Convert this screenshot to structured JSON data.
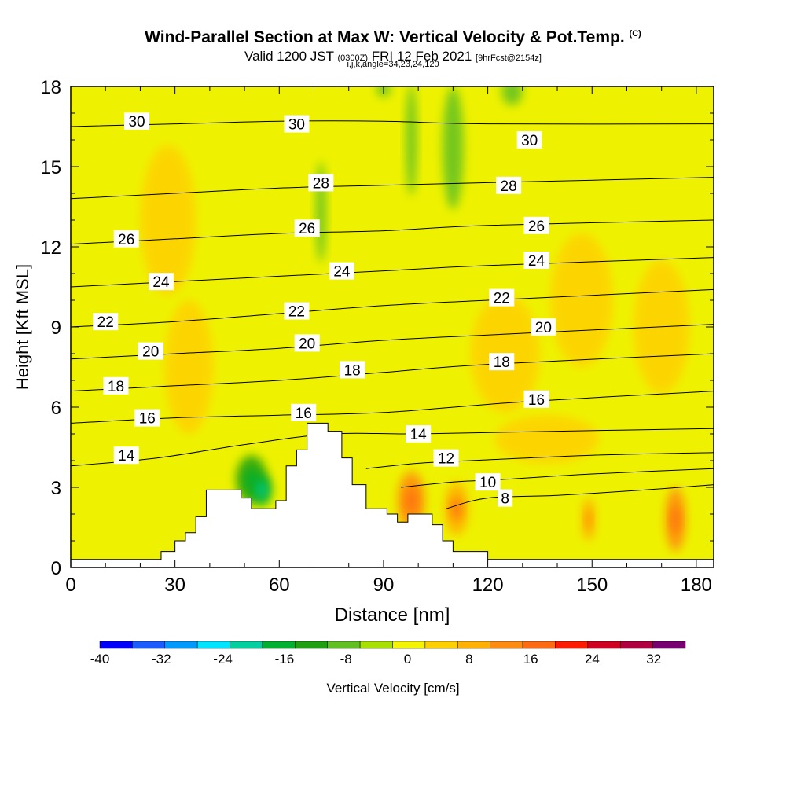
{
  "header": {
    "title": "Wind-Parallel Section at Max W: Vertical Velocity & Pot.Temp.",
    "copyright": "(C)",
    "valid_prefix": "Valid 1200 JST",
    "valid_utc": "(0300Z)",
    "valid_date": "FRI 12 Feb 2021",
    "forecast": "[9hrFcst@2154z]",
    "grid_info": "i,j,k,angle=34,23,24,120"
  },
  "colorbar": {
    "label": "Vertical Velocity [cm/s]",
    "ticks": [
      "-40",
      "-32",
      "-24",
      "-16",
      "-8",
      "0",
      "8",
      "16",
      "24",
      "32"
    ],
    "colors": [
      "#0000ff",
      "#1a5cff",
      "#0099ff",
      "#00e5ff",
      "#00d0a0",
      "#00b030",
      "#1ea010",
      "#60c020",
      "#a8e000",
      "#f5f500",
      "#ffd000",
      "#ffb000",
      "#ff8c10",
      "#ff6a10",
      "#ff1a00",
      "#d00020",
      "#b00040",
      "#780070"
    ]
  },
  "chart_data": {
    "type": "heatmap",
    "xlabel": "Distance [nm]",
    "ylabel": "Height [Kft MSL]",
    "xlim": [
      0,
      185
    ],
    "ylim": [
      0,
      18
    ],
    "x_ticks": [
      0,
      30,
      60,
      90,
      120,
      150,
      180
    ],
    "y_ticks": [
      0,
      3,
      6,
      9,
      12,
      15,
      18
    ],
    "terrain_profile": [
      [
        0,
        0.3
      ],
      [
        26,
        0.3
      ],
      [
        26,
        0.6
      ],
      [
        30,
        0.6
      ],
      [
        30,
        1.0
      ],
      [
        33,
        1.0
      ],
      [
        33,
        1.3
      ],
      [
        36,
        1.3
      ],
      [
        36,
        1.9
      ],
      [
        39,
        1.9
      ],
      [
        39,
        2.9
      ],
      [
        49,
        2.9
      ],
      [
        49,
        2.6
      ],
      [
        52,
        2.6
      ],
      [
        52,
        2.2
      ],
      [
        59,
        2.2
      ],
      [
        59,
        2.5
      ],
      [
        62,
        2.5
      ],
      [
        62,
        3.8
      ],
      [
        65,
        3.8
      ],
      [
        65,
        4.4
      ],
      [
        68,
        4.4
      ],
      [
        68,
        5.4
      ],
      [
        74,
        5.4
      ],
      [
        74,
        5.1
      ],
      [
        78,
        5.1
      ],
      [
        78,
        4.1
      ],
      [
        81,
        4.1
      ],
      [
        81,
        3.1
      ],
      [
        85,
        3.1
      ],
      [
        85,
        2.2
      ],
      [
        91,
        2.2
      ],
      [
        91,
        2.0
      ],
      [
        94,
        2.0
      ],
      [
        94,
        1.7
      ],
      [
        97,
        1.7
      ],
      [
        97,
        2.0
      ],
      [
        104,
        2.0
      ],
      [
        104,
        1.6
      ],
      [
        107,
        1.6
      ],
      [
        107,
        1.0
      ],
      [
        110,
        1.0
      ],
      [
        110,
        0.6
      ],
      [
        120,
        0.6
      ],
      [
        120,
        0.3
      ],
      [
        185,
        0.3
      ]
    ],
    "theta_contours": [
      {
        "label": "8",
        "points": [
          [
            108,
            2.2
          ],
          [
            120,
            2.6
          ],
          [
            140,
            2.7
          ],
          [
            165,
            2.9
          ],
          [
            185,
            3.1
          ]
        ],
        "label_at": [
          125,
          2.6
        ]
      },
      {
        "label": "10",
        "points": [
          [
            95,
            3.0
          ],
          [
            110,
            3.2
          ],
          [
            125,
            3.3
          ],
          [
            150,
            3.5
          ],
          [
            185,
            3.7
          ]
        ],
        "label_at": [
          120,
          3.2
        ]
      },
      {
        "label": "12",
        "points": [
          [
            85,
            3.7
          ],
          [
            100,
            3.9
          ],
          [
            115,
            4.0
          ],
          [
            150,
            4.2
          ],
          [
            185,
            4.3
          ]
        ],
        "label_at": [
          108,
          4.1
        ]
      },
      {
        "label": "14",
        "points": [
          [
            0,
            3.8
          ],
          [
            25,
            4.1
          ],
          [
            50,
            4.6
          ],
          [
            75,
            5.0
          ],
          [
            100,
            5.0
          ],
          [
            140,
            5.1
          ],
          [
            185,
            5.2
          ]
        ],
        "label_at": [
          100,
          5.0
        ]
      },
      {
        "label": "14",
        "points": [],
        "label_at": [
          16,
          4.2
        ]
      },
      {
        "label": "16",
        "points": [
          [
            0,
            5.4
          ],
          [
            30,
            5.6
          ],
          [
            60,
            5.7
          ],
          [
            90,
            5.8
          ],
          [
            130,
            6.2
          ],
          [
            185,
            6.6
          ]
        ],
        "label_at": [
          67,
          5.8
        ]
      },
      {
        "label": "16",
        "points": [],
        "label_at": [
          22,
          5.6
        ]
      },
      {
        "label": "16",
        "points": [],
        "label_at": [
          134,
          6.3
        ]
      },
      {
        "label": "18",
        "points": [
          [
            0,
            6.6
          ],
          [
            30,
            6.8
          ],
          [
            60,
            7.0
          ],
          [
            90,
            7.3
          ],
          [
            120,
            7.6
          ],
          [
            185,
            8.0
          ]
        ],
        "label_at": [
          13,
          6.8
        ]
      },
      {
        "label": "18",
        "points": [],
        "label_at": [
          81,
          7.4
        ]
      },
      {
        "label": "18",
        "points": [],
        "label_at": [
          124,
          7.7
        ]
      },
      {
        "label": "20",
        "points": [
          [
            0,
            7.8
          ],
          [
            30,
            8.0
          ],
          [
            60,
            8.2
          ],
          [
            90,
            8.5
          ],
          [
            120,
            8.7
          ],
          [
            185,
            9.1
          ]
        ],
        "label_at": [
          23,
          8.1
        ]
      },
      {
        "label": "20",
        "points": [],
        "label_at": [
          68,
          8.4
        ]
      },
      {
        "label": "20",
        "points": [],
        "label_at": [
          136,
          9.0
        ]
      },
      {
        "label": "22",
        "points": [
          [
            0,
            9.0
          ],
          [
            30,
            9.2
          ],
          [
            60,
            9.5
          ],
          [
            90,
            9.8
          ],
          [
            120,
            10.0
          ],
          [
            185,
            10.4
          ]
        ],
        "label_at": [
          10,
          9.2
        ]
      },
      {
        "label": "22",
        "points": [],
        "label_at": [
          65,
          9.6
        ]
      },
      {
        "label": "22",
        "points": [],
        "label_at": [
          124,
          10.1
        ]
      },
      {
        "label": "24",
        "points": [
          [
            0,
            10.5
          ],
          [
            30,
            10.7
          ],
          [
            60,
            10.9
          ],
          [
            90,
            11.1
          ],
          [
            120,
            11.3
          ],
          [
            185,
            11.6
          ]
        ],
        "label_at": [
          26,
          10.7
        ]
      },
      {
        "label": "24",
        "points": [],
        "label_at": [
          78,
          11.1
        ]
      },
      {
        "label": "24",
        "points": [],
        "label_at": [
          134,
          11.5
        ]
      },
      {
        "label": "26",
        "points": [
          [
            0,
            12.1
          ],
          [
            30,
            12.3
          ],
          [
            60,
            12.5
          ],
          [
            90,
            12.6
          ],
          [
            120,
            12.8
          ],
          [
            185,
            13.0
          ]
        ],
        "label_at": [
          16,
          12.3
        ]
      },
      {
        "label": "26",
        "points": [],
        "label_at": [
          68,
          12.7
        ]
      },
      {
        "label": "26",
        "points": [],
        "label_at": [
          134,
          12.8
        ]
      },
      {
        "label": "28",
        "points": [
          [
            0,
            13.8
          ],
          [
            30,
            14.0
          ],
          [
            60,
            14.2
          ],
          [
            90,
            14.3
          ],
          [
            120,
            14.4
          ],
          [
            185,
            14.6
          ]
        ],
        "label_at": [
          72,
          14.4
        ]
      },
      {
        "label": "28",
        "points": [],
        "label_at": [
          126,
          14.3
        ]
      },
      {
        "label": "30",
        "points": [
          [
            0,
            16.5
          ],
          [
            30,
            16.6
          ],
          [
            60,
            16.7
          ],
          [
            90,
            16.7
          ],
          [
            120,
            16.6
          ],
          [
            185,
            16.6
          ]
        ],
        "label_at": [
          19,
          16.7
        ]
      },
      {
        "label": "30",
        "points": [],
        "label_at": [
          65,
          16.6
        ]
      },
      {
        "label": "30",
        "points": [],
        "label_at": [
          132,
          16.0
        ]
      }
    ],
    "velocity_features": [
      {
        "x": 98,
        "y": 2.5,
        "rx": 4,
        "ry": 1.1,
        "value": 16
      },
      {
        "x": 111,
        "y": 2.2,
        "rx": 3.5,
        "ry": 1.0,
        "value": 12
      },
      {
        "x": 174,
        "y": 1.8,
        "rx": 3,
        "ry": 1.2,
        "value": 14
      },
      {
        "x": 149,
        "y": 1.8,
        "rx": 2,
        "ry": 0.8,
        "value": 10
      },
      {
        "x": 34,
        "y": 7.5,
        "rx": 7,
        "ry": 2.5,
        "value": 5
      },
      {
        "x": 28,
        "y": 13,
        "rx": 8,
        "ry": 2.8,
        "value": 5
      },
      {
        "x": 125,
        "y": 8.0,
        "rx": 10,
        "ry": 2.2,
        "value": 5
      },
      {
        "x": 147,
        "y": 10.0,
        "rx": 9,
        "ry": 2.5,
        "value": 5
      },
      {
        "x": 170,
        "y": 9.0,
        "rx": 8,
        "ry": 2.5,
        "value": 4
      },
      {
        "x": 137,
        "y": 4.8,
        "rx": 15,
        "ry": 0.9,
        "value": 4
      },
      {
        "x": 52,
        "y": 3.3,
        "rx": 4.5,
        "ry": 0.9,
        "value": -10
      },
      {
        "x": 55,
        "y": 2.9,
        "rx": 3,
        "ry": 0.6,
        "value": -14
      },
      {
        "x": 72,
        "y": 13.3,
        "rx": 1.5,
        "ry": 1.9,
        "value": -6
      },
      {
        "x": 98,
        "y": 16.0,
        "rx": 1.6,
        "ry": 2.1,
        "value": -6
      },
      {
        "x": 110,
        "y": 15.7,
        "rx": 3,
        "ry": 2.3,
        "value": -7
      },
      {
        "x": 127,
        "y": 17.8,
        "rx": 3,
        "ry": 0.5,
        "value": -5
      },
      {
        "x": 90,
        "y": 17.9,
        "rx": 2,
        "ry": 0.3,
        "value": -5
      }
    ]
  }
}
